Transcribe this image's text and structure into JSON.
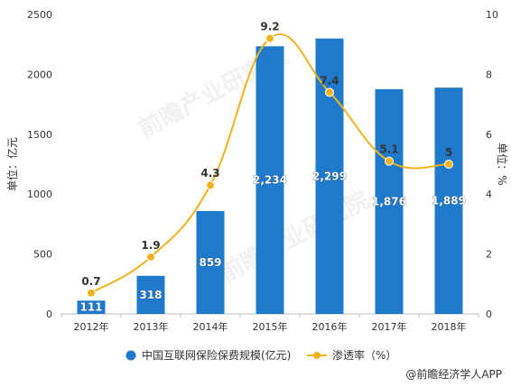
{
  "watermark": "前瞻产业研究院",
  "source": "@前瞻经济学人APP",
  "chart_data": {
    "type": "bar",
    "categories": [
      "2012年",
      "2013年",
      "2014年",
      "2015年",
      "2016年",
      "2017年",
      "2018年"
    ],
    "series": [
      {
        "name": "中国互联网保险保费规模(亿元)",
        "type": "bar",
        "axis": "left",
        "color": "#1f7acb",
        "values": [
          111,
          318,
          859,
          2234,
          2299,
          1876,
          1889
        ],
        "labels": [
          "111",
          "318",
          "859",
          "2,234",
          "2,299",
          "1,876",
          "1,889"
        ]
      },
      {
        "name": "渗透率（%）",
        "type": "line",
        "axis": "right",
        "color": "#f0b31e",
        "values": [
          0.7,
          1.9,
          4.3,
          9.2,
          7.4,
          5.1,
          5
        ],
        "labels": [
          "0.7",
          "1.9",
          "4.3",
          "9.2",
          "7.4",
          "5.1",
          "5"
        ]
      }
    ],
    "ylabel_left": "单位：亿元",
    "ylabel_right": "单位：%",
    "ylim_left": [
      0,
      2500
    ],
    "ylim_right": [
      0,
      10
    ],
    "yticks_left": [
      "0",
      "500",
      "1000",
      "1500",
      "2000",
      "2500"
    ],
    "yticks_right": [
      "0",
      "2",
      "4",
      "6",
      "8",
      "10"
    ],
    "grid": false,
    "legend_position": "bottom"
  }
}
